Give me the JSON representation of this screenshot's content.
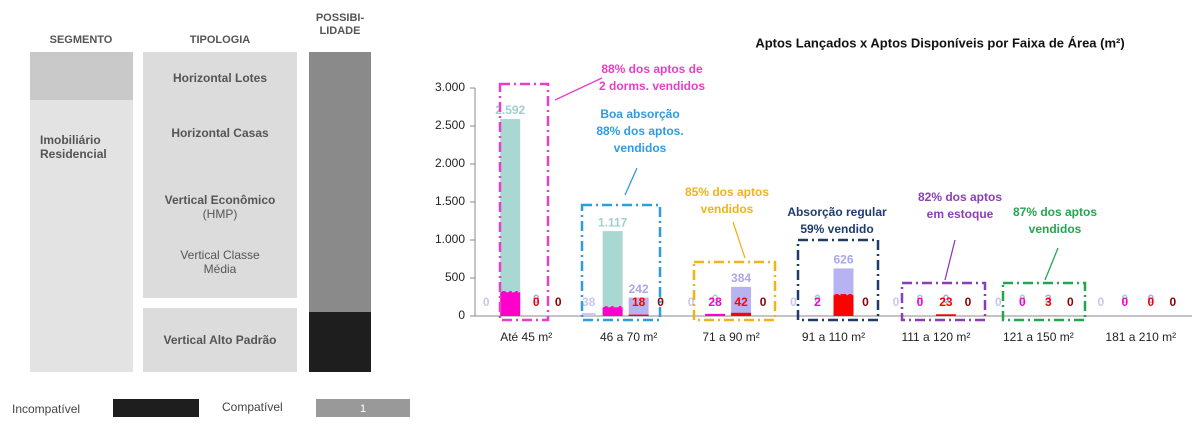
{
  "table": {
    "headers": [
      "SEGMENTO",
      "TIPOLOGIA",
      [
        "POSSIBI-",
        "LIDADE"
      ]
    ],
    "segment": [
      "Imobiliário",
      "Residencial"
    ],
    "rows": [
      [
        "Horizontal Lotes"
      ],
      [
        "Horizontal Casas"
      ],
      [
        "Vertical Econômico",
        "(HMP)"
      ],
      [
        "Vertical Classe",
        "Média"
      ],
      [
        "Vertical Alto Padrão"
      ]
    ],
    "legend": {
      "incompatible": "Incompatível",
      "compatible": "Compatível",
      "compatible_value": "1"
    }
  },
  "chart_data": {
    "type": "bar",
    "title": "Aptos Lançados x Aptos Disponíveis por Faixa de Área (m²)",
    "categories": [
      "Até 45 m²",
      "46 a 70 m²",
      "71 a 90 m²",
      "91 a 110 m²",
      "111 a 120 m²",
      "121 a 150 m²",
      "181 a 210 m²"
    ],
    "series": [
      {
        "color": "#c9c6ee",
        "values": [
          0,
          38,
          0,
          0,
          0,
          0,
          0
        ]
      },
      {
        "color": "#a9d8d3",
        "values": [
          2592,
          1117,
          0,
          0,
          0,
          0,
          0
        ],
        "value_labels": [
          "2.592",
          "1.117",
          "0",
          "0",
          "0",
          "0",
          "0"
        ]
      },
      {
        "color": "#ff00cc",
        "values": [
          311,
          114,
          28,
          2,
          0,
          0,
          0
        ]
      },
      {
        "color": "#b7b3f2",
        "values": [
          0,
          242,
          384,
          626,
          0,
          3,
          0
        ]
      },
      {
        "color": "#ff0000",
        "values": [
          0,
          18,
          42,
          273,
          23,
          3,
          0
        ]
      },
      {
        "color": "#8b0000",
        "values": [
          0,
          0,
          0,
          0,
          0,
          0,
          0
        ]
      }
    ],
    "ylim": [
      0,
      3000
    ],
    "yticks": [
      0,
      500,
      {
        "value": 1000,
        "label": "1.000"
      },
      {
        "value": 1500,
        "label": "1.500"
      },
      {
        "value": 2000,
        "label": "2.000"
      },
      {
        "value": 2500,
        "label": "2.500"
      },
      {
        "value": 3000,
        "label": "3.000"
      }
    ],
    "annotations": [
      {
        "lines": [
          "88% dos aptos de",
          "2 dorms. vendidos"
        ],
        "color": "#e83ec8"
      },
      {
        "lines": [
          "Boa absorção",
          "88% dos aptos.",
          "vendidos"
        ],
        "color": "#2f9be0"
      },
      {
        "lines": [
          "85% dos aptos",
          "vendidos"
        ],
        "color": "#f2b21b"
      },
      {
        "lines": [
          "Absorção regular",
          "59% vendido"
        ],
        "color": "#1f3c6e"
      },
      {
        "lines": [
          "82% dos aptos",
          "em estoque"
        ],
        "color": "#8a3fb5"
      },
      {
        "lines": [
          "87% dos aptos",
          "vendidos"
        ],
        "color": "#22a650"
      }
    ]
  }
}
